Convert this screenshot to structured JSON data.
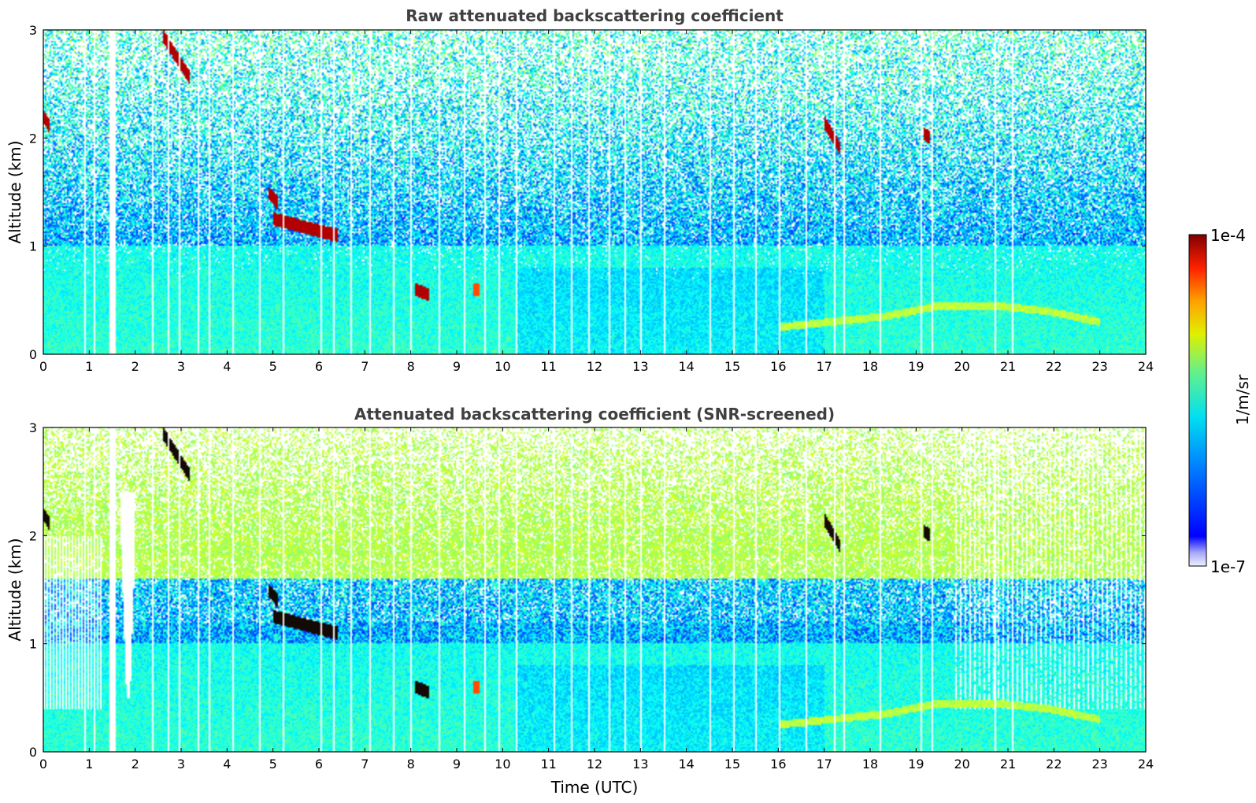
{
  "chart_data": [
    {
      "type": "heatmap",
      "title": "Raw attenuated backscattering coefficient",
      "xlabel": "",
      "ylabel": "Altitude (km)",
      "xlim": [
        0,
        24
      ],
      "ylim": [
        0,
        3
      ],
      "xticks": [
        0,
        1,
        2,
        3,
        4,
        5,
        6,
        7,
        8,
        9,
        10,
        11,
        12,
        13,
        14,
        15,
        16,
        17,
        18,
        19,
        20,
        21,
        22,
        23,
        24
      ],
      "yticks": [
        0,
        1,
        2,
        3
      ],
      "colorbar": {
        "label": "1/m/sr",
        "max_label": "1e-4",
        "min_label": "1e-7",
        "scale": "log",
        "min": 1e-07,
        "max": 0.0001,
        "colormap": "jet"
      },
      "features": [
        {
          "kind": "cloud",
          "t_start": 5.0,
          "t_end": 6.4,
          "alt_start": 1.25,
          "alt_end": 1.1,
          "intensity": "high"
        },
        {
          "kind": "cloud",
          "t_start": 2.6,
          "t_end": 3.2,
          "alt_start": 2.95,
          "alt_end": 2.55,
          "intensity": "high"
        },
        {
          "kind": "cloud",
          "t_start": 0.0,
          "t_end": 0.15,
          "alt_start": 2.2,
          "alt_end": 2.1,
          "intensity": "high"
        },
        {
          "kind": "cloud",
          "t_start": 4.9,
          "t_end": 5.1,
          "alt_start": 1.5,
          "alt_end": 1.4,
          "intensity": "high"
        },
        {
          "kind": "cloud",
          "t_start": 8.1,
          "t_end": 8.4,
          "alt_start": 0.6,
          "alt_end": 0.55,
          "intensity": "high"
        },
        {
          "kind": "cloud",
          "t_start": 9.35,
          "t_end": 9.5,
          "alt_start": 0.6,
          "alt_end": 0.6,
          "intensity": "medium"
        },
        {
          "kind": "cloud",
          "t_start": 17.0,
          "t_end": 17.35,
          "alt_start": 2.15,
          "alt_end": 1.9,
          "intensity": "high"
        },
        {
          "kind": "cloud",
          "t_start": 19.15,
          "t_end": 19.3,
          "alt_start": 2.05,
          "alt_end": 2.0,
          "intensity": "high"
        },
        {
          "kind": "aerosol_layer",
          "t_start": 16.0,
          "t_end": 23.0,
          "alt": [
            0.25,
            0.3,
            0.35,
            0.45,
            0.45,
            0.4,
            0.3
          ],
          "intensity": "medium"
        }
      ]
    },
    {
      "type": "heatmap",
      "title": "Attenuated backscattering coefficient (SNR-screened)",
      "xlabel": "Time (UTC)",
      "ylabel": "Altitude (km)",
      "xlim": [
        0,
        24
      ],
      "ylim": [
        0,
        3
      ],
      "xticks": [
        0,
        1,
        2,
        3,
        4,
        5,
        6,
        7,
        8,
        9,
        10,
        11,
        12,
        13,
        14,
        15,
        16,
        17,
        18,
        19,
        20,
        21,
        22,
        23,
        24
      ],
      "yticks": [
        0,
        1,
        2,
        3
      ],
      "colorbar": {
        "label": "1/m/sr",
        "max_label": "1e-4",
        "min_label": "1e-7",
        "scale": "log",
        "min": 1e-07,
        "max": 0.0001,
        "colormap": "jet"
      }
    }
  ]
}
